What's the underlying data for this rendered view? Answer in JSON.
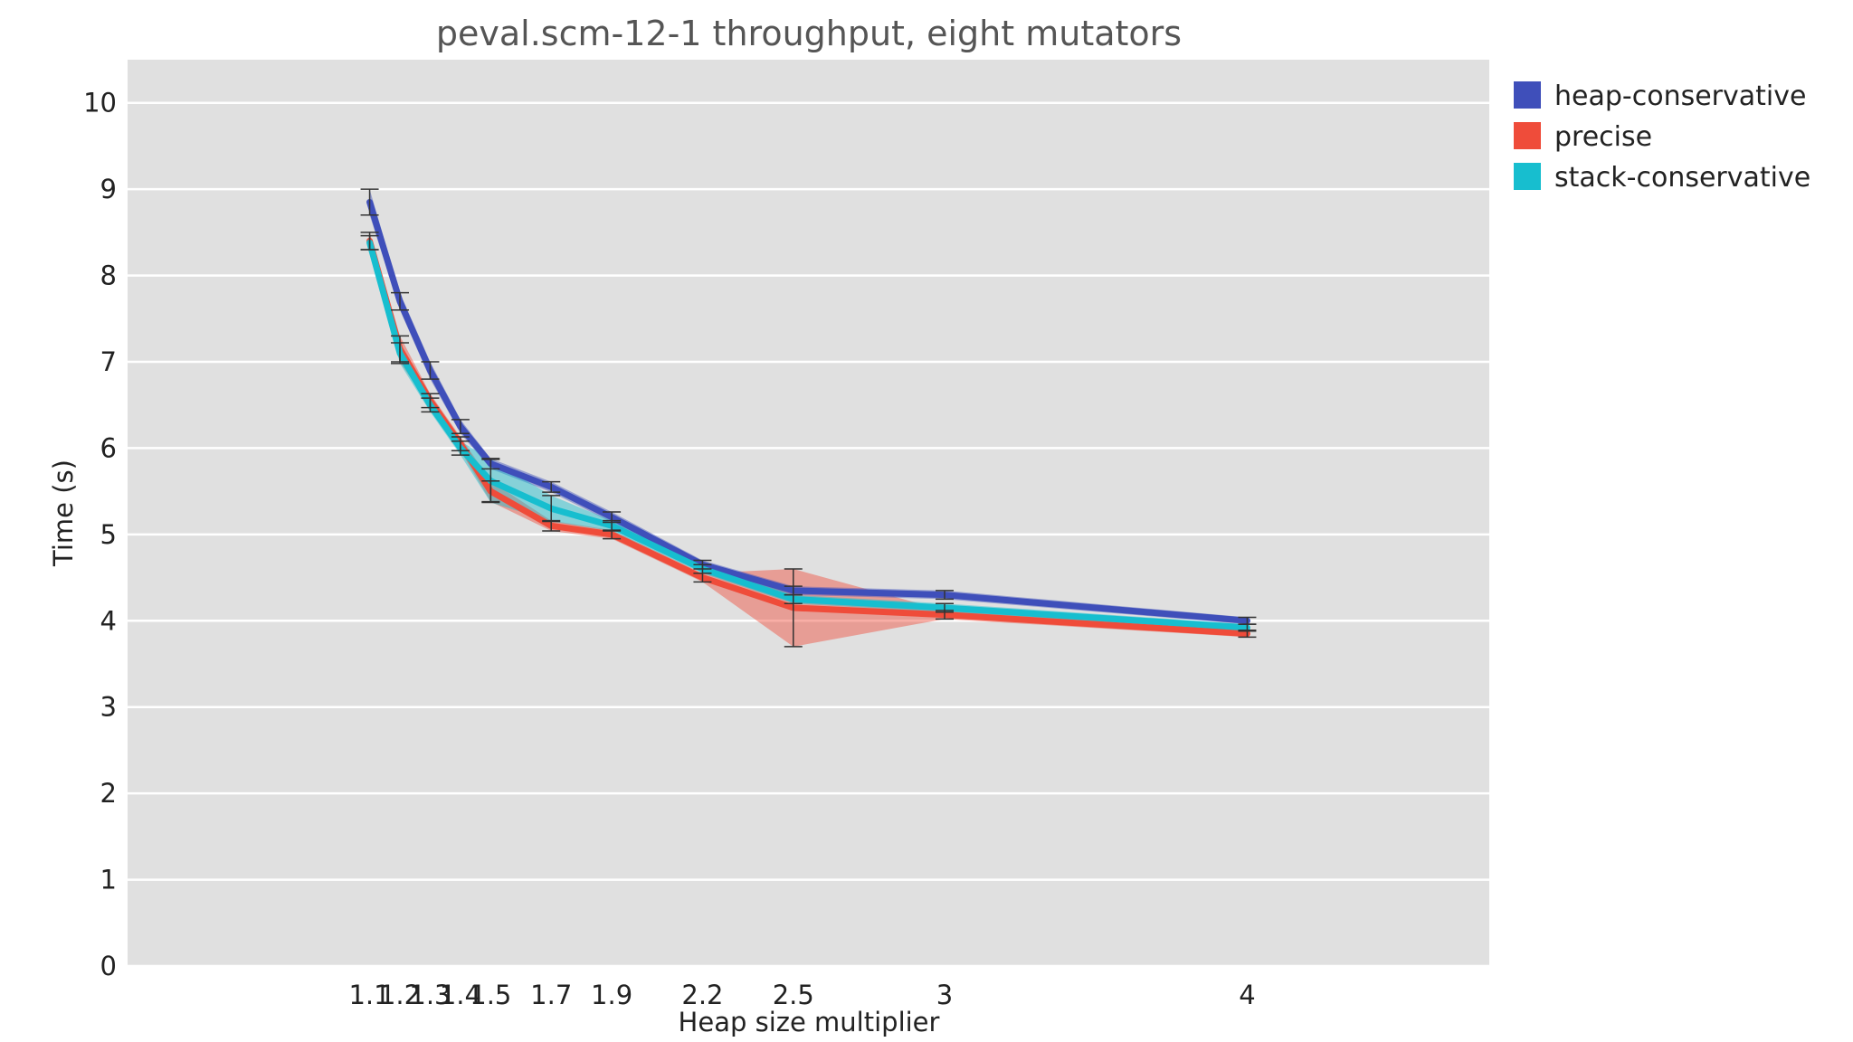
{
  "chart_data": {
    "type": "line",
    "title": "peval.scm-12-1 throughput, eight mutators",
    "xlabel": "Heap size multiplier",
    "ylabel": "Time (s)",
    "x": [
      1.1,
      1.2,
      1.3,
      1.4,
      1.5,
      1.7,
      1.9,
      2.2,
      2.5,
      3,
      4
    ],
    "xtick_labels": [
      "1.1",
      "1.2",
      "1.3",
      "1.4",
      "1.5",
      "1.7",
      "1.9",
      "2.2",
      "2.5",
      "3",
      "4"
    ],
    "xlim": [
      0.3,
      4.8
    ],
    "ylim": [
      0,
      10.5
    ],
    "yticks": [
      0,
      1,
      2,
      3,
      4,
      5,
      6,
      7,
      8,
      9,
      10
    ],
    "grid": true,
    "legend_position": "outside-top-right",
    "series": [
      {
        "name": "heap-conservative",
        "color": "#3f4fba",
        "values": [
          8.85,
          7.7,
          6.9,
          6.25,
          5.82,
          5.55,
          5.2,
          4.65,
          4.35,
          4.3,
          4.0
        ],
        "errors": [
          0.15,
          0.1,
          0.1,
          0.08,
          0.06,
          0.06,
          0.06,
          0.05,
          0.05,
          0.05,
          0.04
        ]
      },
      {
        "name": "precise",
        "color": "#ef4c3a",
        "values": [
          8.4,
          7.15,
          6.55,
          6.05,
          5.5,
          5.1,
          5.0,
          4.5,
          4.15,
          4.07,
          3.85
        ],
        "errors": [
          0.1,
          0.15,
          0.08,
          0.08,
          0.12,
          0.06,
          0.05,
          0.05,
          0.45,
          0.05,
          0.04
        ]
      },
      {
        "name": "stack-conservative",
        "color": "#17becf",
        "values": [
          8.38,
          7.1,
          6.5,
          6.0,
          5.62,
          5.3,
          5.1,
          4.6,
          4.25,
          4.15,
          3.92
        ],
        "errors": [
          0.08,
          0.12,
          0.08,
          0.08,
          0.25,
          0.15,
          0.06,
          0.05,
          0.05,
          0.05,
          0.04
        ]
      }
    ]
  }
}
